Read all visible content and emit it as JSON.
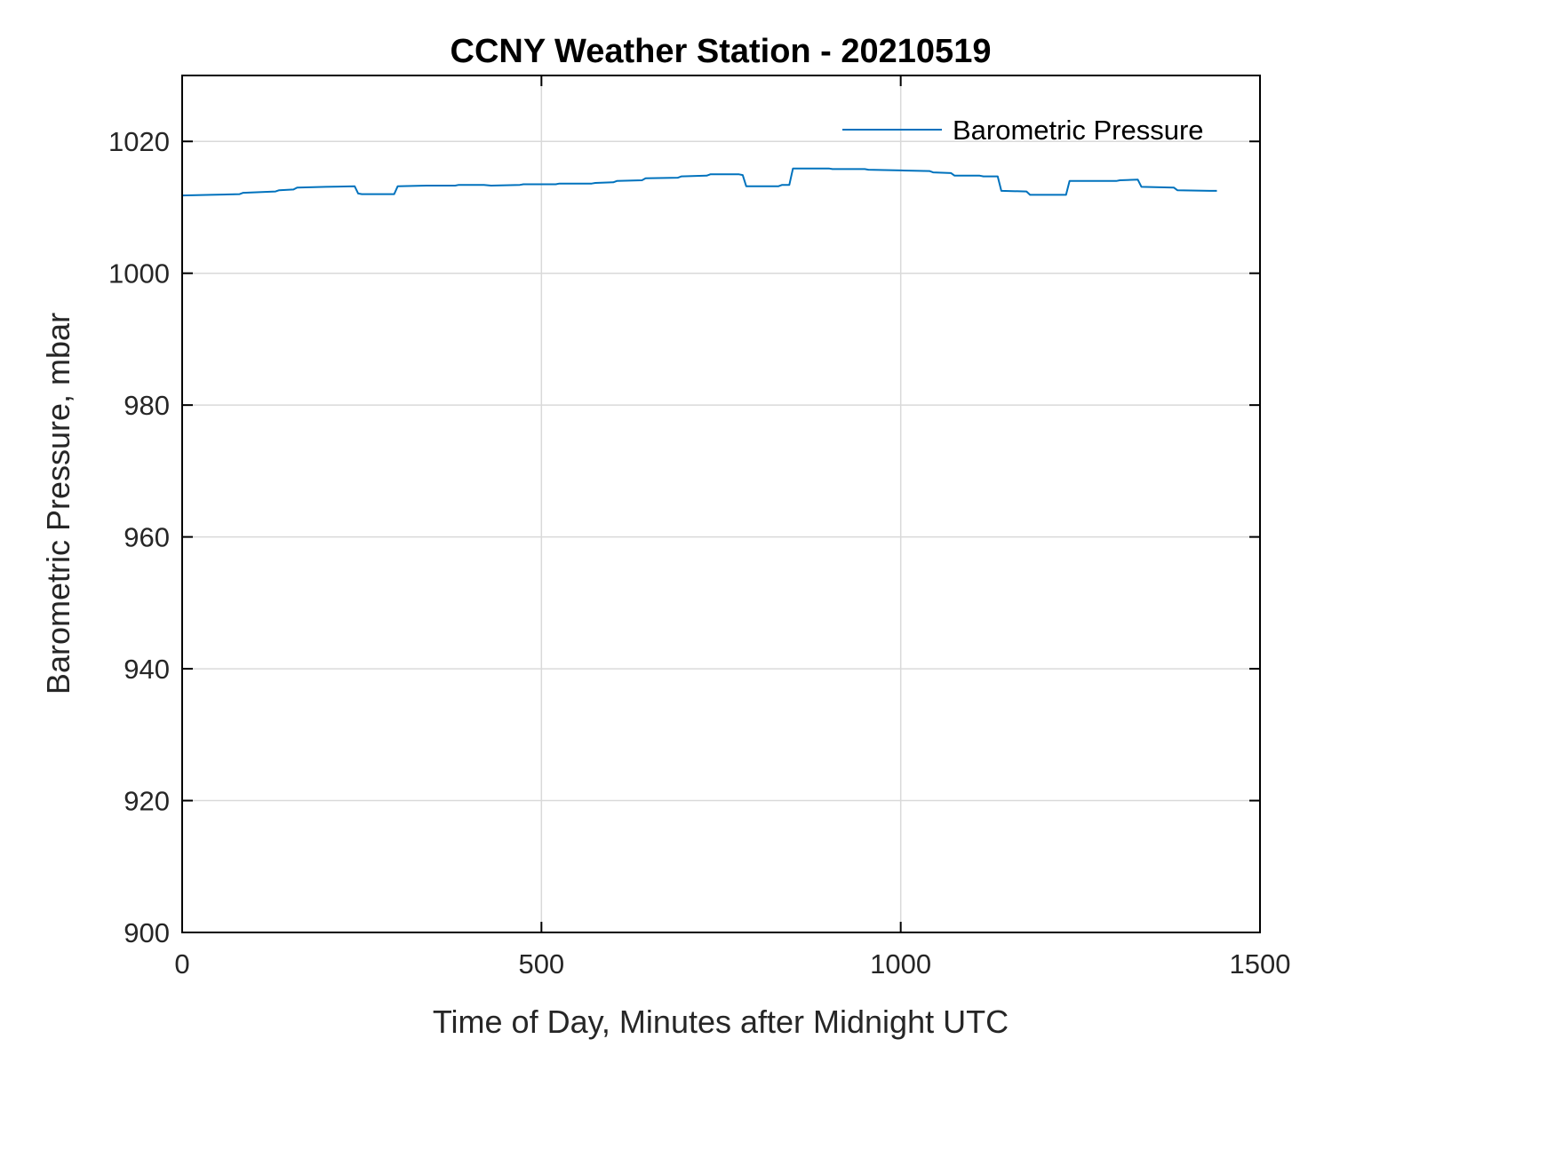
{
  "page": {
    "background_color": "#ffffff"
  },
  "chart_data": {
    "type": "line",
    "title": "CCNY Weather Station - 20210519",
    "xlabel": "Time of Day, Minutes after Midnight UTC",
    "ylabel": "Barometric Pressure, mbar",
    "xlim": [
      0,
      1500
    ],
    "ylim": [
      900,
      1030
    ],
    "xticks": [
      0,
      500,
      1000,
      1500
    ],
    "yticks": [
      900,
      920,
      940,
      960,
      980,
      1000,
      1020
    ],
    "grid": true,
    "grid_color": "#d9d9d9",
    "axis_color": "#000000",
    "tick_label_color": "#262626",
    "line_color": "#0072BD",
    "legend": {
      "position": "top-right",
      "entries": [
        "Barometric Pressure"
      ]
    },
    "series": [
      {
        "name": "Barometric Pressure",
        "x": [
          0,
          40,
          80,
          85,
          130,
          135,
          155,
          160,
          200,
          240,
          245,
          250,
          295,
          300,
          340,
          380,
          385,
          420,
          430,
          470,
          475,
          520,
          525,
          570,
          575,
          600,
          605,
          640,
          645,
          690,
          695,
          730,
          735,
          775,
          780,
          785,
          830,
          835,
          845,
          850,
          900,
          905,
          950,
          955,
          1000,
          1040,
          1045,
          1070,
          1075,
          1110,
          1115,
          1135,
          1140,
          1175,
          1180,
          1230,
          1235,
          1300,
          1305,
          1330,
          1335,
          1380,
          1385,
          1430,
          1440
        ],
        "y": [
          1011.8,
          1011.9,
          1012.0,
          1012.2,
          1012.4,
          1012.6,
          1012.7,
          1013.0,
          1013.1,
          1013.2,
          1012.1,
          1012.0,
          1012.0,
          1013.2,
          1013.3,
          1013.3,
          1013.4,
          1013.4,
          1013.3,
          1013.4,
          1013.5,
          1013.5,
          1013.6,
          1013.6,
          1013.7,
          1013.8,
          1014.0,
          1014.1,
          1014.4,
          1014.5,
          1014.7,
          1014.8,
          1015.0,
          1015.0,
          1014.9,
          1013.2,
          1013.2,
          1013.4,
          1013.4,
          1015.9,
          1015.9,
          1015.8,
          1015.8,
          1015.7,
          1015.6,
          1015.5,
          1015.3,
          1015.2,
          1014.8,
          1014.8,
          1014.7,
          1014.7,
          1012.5,
          1012.4,
          1011.9,
          1011.9,
          1014.0,
          1014.0,
          1014.1,
          1014.2,
          1013.1,
          1013.0,
          1012.6,
          1012.5,
          1012.5
        ]
      }
    ]
  }
}
